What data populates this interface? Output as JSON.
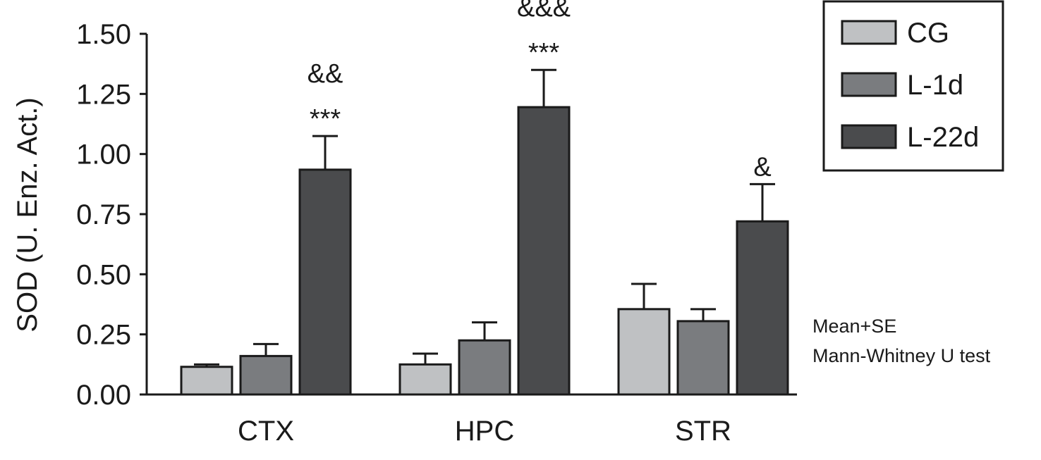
{
  "chart_data": {
    "type": "bar",
    "ylabel": "SOD (U. Enz. Act.)",
    "ylim": [
      0,
      1.5
    ],
    "yticks": [
      "0.00",
      "0.25",
      "0.50",
      "0.75",
      "1.00",
      "1.25",
      "1.50"
    ],
    "categories": [
      "CTX",
      "HPC",
      "STR"
    ],
    "series": [
      {
        "name": "CG",
        "color": "#bfc1c3",
        "values": [
          0.115,
          0.125,
          0.355
        ],
        "errors": [
          0.01,
          0.045,
          0.105
        ]
      },
      {
        "name": "L-1d",
        "color": "#7a7c7f",
        "values": [
          0.16,
          0.225,
          0.305
        ],
        "errors": [
          0.05,
          0.075,
          0.05
        ]
      },
      {
        "name": "L-22d",
        "color": "#4a4b4d",
        "values": [
          0.935,
          1.195,
          0.72
        ],
        "errors": [
          0.14,
          0.155,
          0.155
        ]
      }
    ],
    "significance": [
      {
        "category": "CTX",
        "series": "L-22d",
        "lines": [
          "&&",
          "***"
        ]
      },
      {
        "category": "HPC",
        "series": "L-22d",
        "lines": [
          "&&&",
          "***"
        ]
      },
      {
        "category": "STR",
        "series": "L-22d",
        "lines": [
          "&"
        ]
      }
    ],
    "legend_position": "top-right",
    "notes": [
      "Mean+SE",
      "Mann-Whitney U test"
    ],
    "grid": false
  }
}
